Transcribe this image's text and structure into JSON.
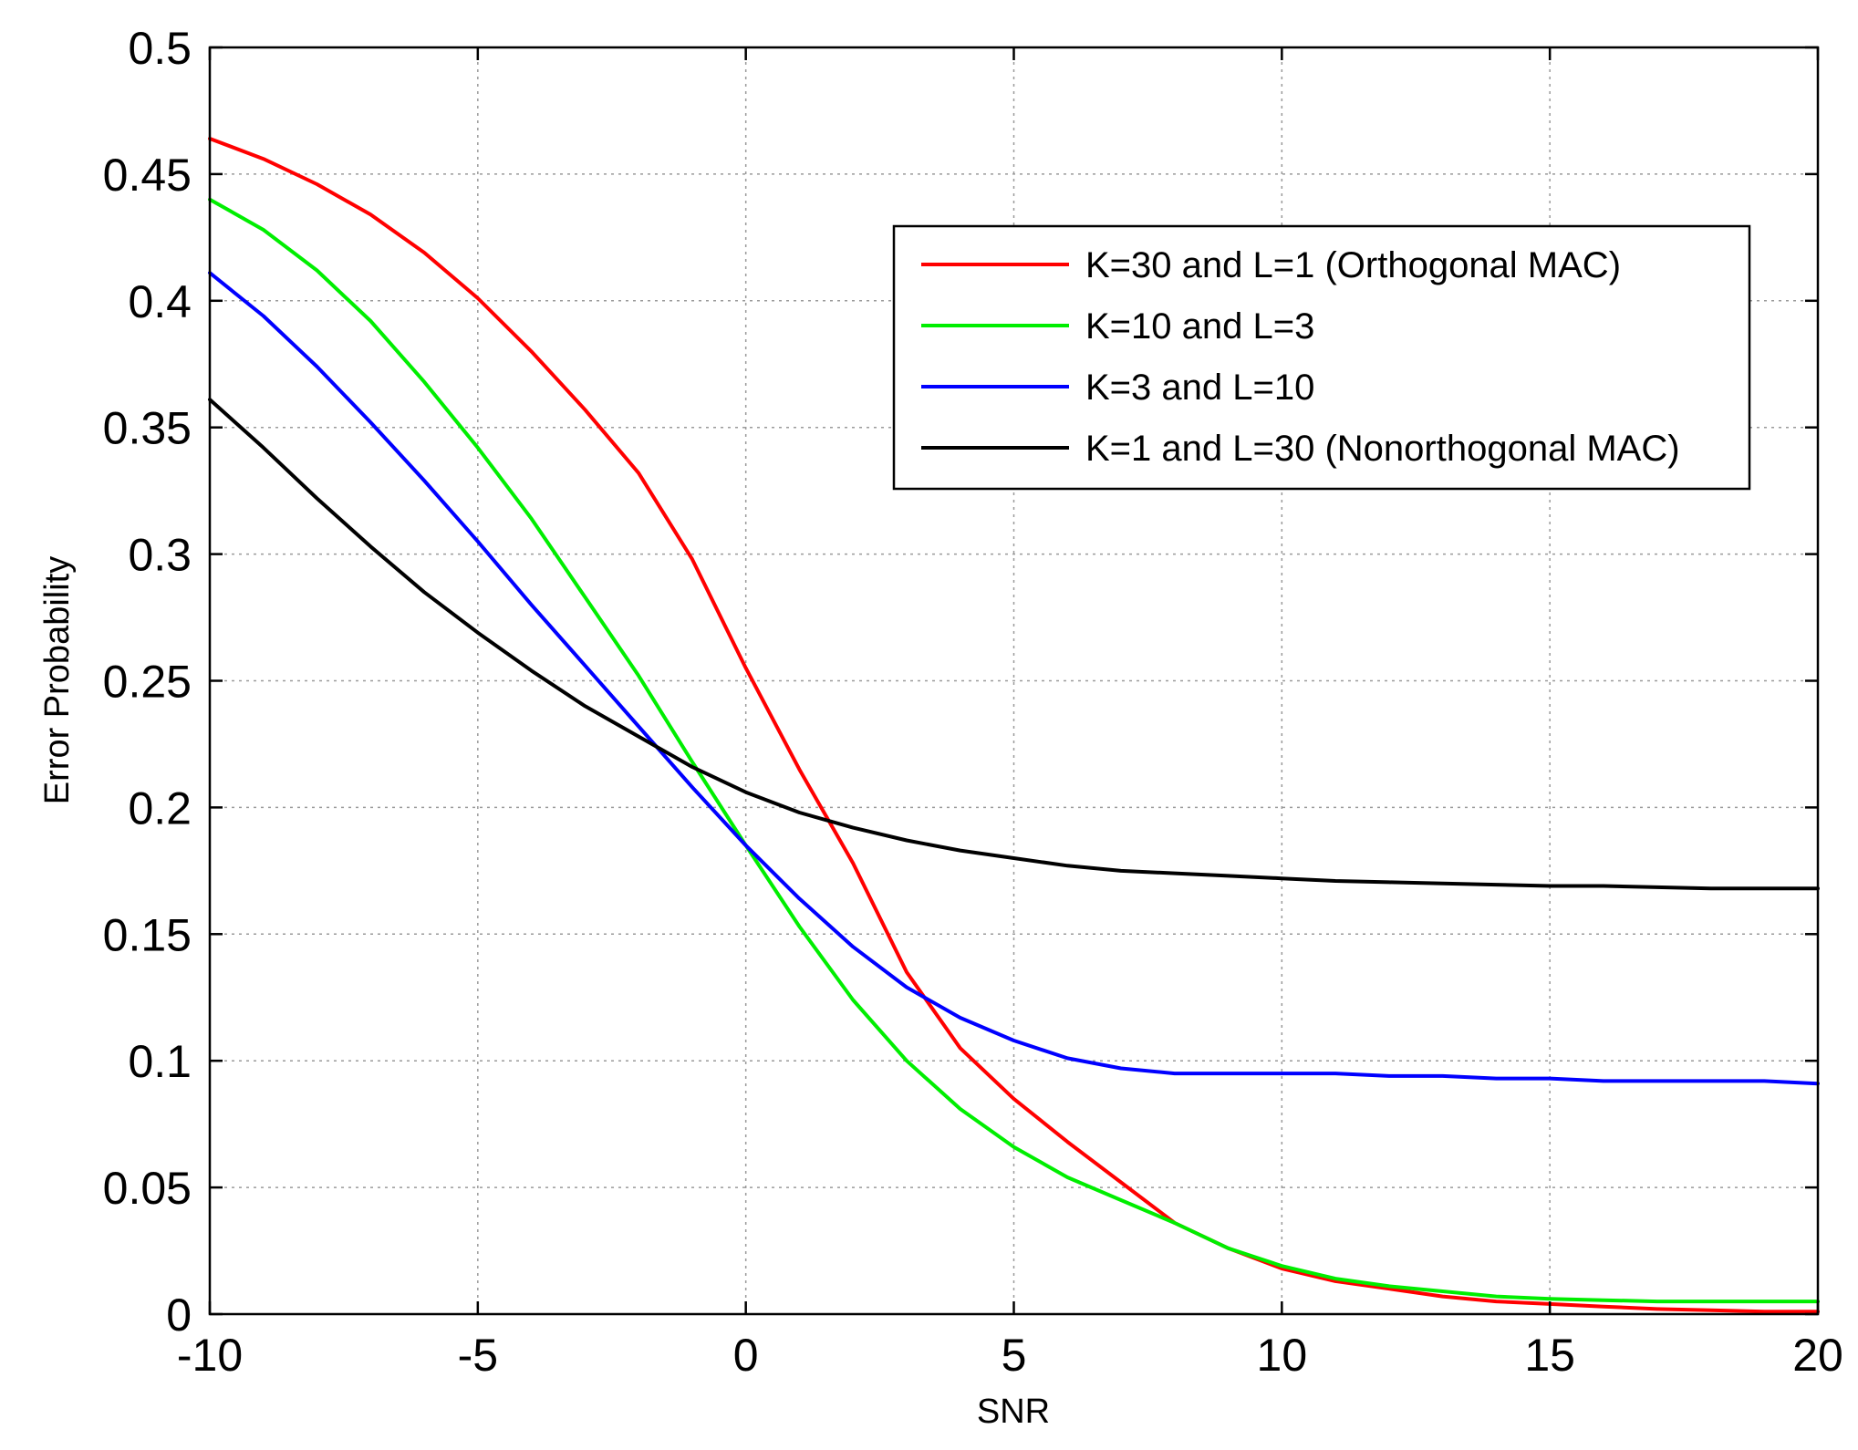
{
  "chart_data": {
    "type": "line",
    "title": "",
    "xlabel": "SNR",
    "ylabel": "Error Probability",
    "xlim": [
      -10,
      20
    ],
    "ylim": [
      0,
      0.5
    ],
    "xticks": [
      -10,
      -5,
      0,
      5,
      10,
      15,
      20
    ],
    "xtick_labels": [
      "-10",
      "-5",
      "0",
      "5",
      "10",
      "15",
      "20"
    ],
    "yticks": [
      0,
      0.05,
      0.1,
      0.15,
      0.2,
      0.25,
      0.3,
      0.35,
      0.4,
      0.45,
      0.5
    ],
    "ytick_labels": [
      "0",
      "0.05",
      "0.1",
      "0.15",
      "0.2",
      "0.25",
      "0.3",
      "0.35",
      "0.4",
      "0.45",
      "0.5"
    ],
    "grid": true,
    "legend_position": "top-right",
    "x": [
      -10,
      -9,
      -8,
      -7,
      -6,
      -5,
      -4,
      -3,
      -2,
      -1,
      0,
      1,
      2,
      3,
      4,
      5,
      6,
      7,
      8,
      9,
      10,
      11,
      12,
      13,
      14,
      15,
      16,
      17,
      18,
      19,
      20
    ],
    "series": [
      {
        "name": "K=30 and L=1 (Orthogonal MAC)",
        "color": "#ff0000",
        "values": [
          0.464,
          0.456,
          0.446,
          0.434,
          0.419,
          0.401,
          0.38,
          0.357,
          0.332,
          0.298,
          0.255,
          0.215,
          0.178,
          0.135,
          0.105,
          0.085,
          0.068,
          0.052,
          0.036,
          0.026,
          0.018,
          0.013,
          0.01,
          0.007,
          0.005,
          0.004,
          0.003,
          0.002,
          0.0015,
          0.001,
          0.001
        ]
      },
      {
        "name": "K=10 and L=3",
        "color": "#00ee00",
        "values": [
          0.44,
          0.428,
          0.412,
          0.392,
          0.368,
          0.342,
          0.314,
          0.283,
          0.252,
          0.218,
          0.185,
          0.153,
          0.124,
          0.1,
          0.081,
          0.066,
          0.054,
          0.045,
          0.036,
          0.026,
          0.019,
          0.014,
          0.011,
          0.009,
          0.007,
          0.006,
          0.0055,
          0.005,
          0.005,
          0.005,
          0.005
        ]
      },
      {
        "name": "K=3 and L=10",
        "color": "#0000ff",
        "values": [
          0.411,
          0.394,
          0.374,
          0.352,
          0.329,
          0.305,
          0.28,
          0.256,
          0.232,
          0.208,
          0.185,
          0.164,
          0.145,
          0.129,
          0.117,
          0.108,
          0.101,
          0.097,
          0.095,
          0.095,
          0.095,
          0.095,
          0.094,
          0.094,
          0.093,
          0.093,
          0.092,
          0.092,
          0.092,
          0.092,
          0.091
        ]
      },
      {
        "name": "K=1 and L=30 (Nonorthogonal MAC)",
        "color": "#000000",
        "values": [
          0.361,
          0.342,
          0.322,
          0.303,
          0.285,
          0.269,
          0.254,
          0.24,
          0.228,
          0.216,
          0.206,
          0.198,
          0.192,
          0.187,
          0.183,
          0.18,
          0.177,
          0.175,
          0.174,
          0.173,
          0.172,
          0.171,
          0.1705,
          0.17,
          0.1695,
          0.169,
          0.169,
          0.1685,
          0.168,
          0.168,
          0.168
        ]
      }
    ]
  }
}
